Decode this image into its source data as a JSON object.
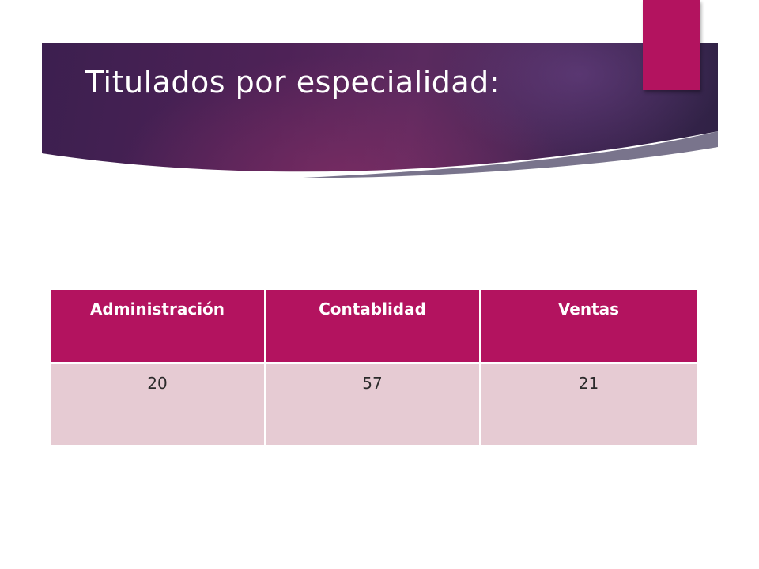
{
  "slide": {
    "title": "Titulados por especialidad:"
  },
  "colors": {
    "accent": "#b3135f",
    "row_fill": "#e6cbd3",
    "banner_dark": "#3c1f4f",
    "banner_mid": "#5a2a5f"
  },
  "table": {
    "headers": [
      "Administración",
      "Contablidad",
      "Ventas"
    ],
    "rows": [
      [
        "20",
        "57",
        "21"
      ]
    ]
  }
}
